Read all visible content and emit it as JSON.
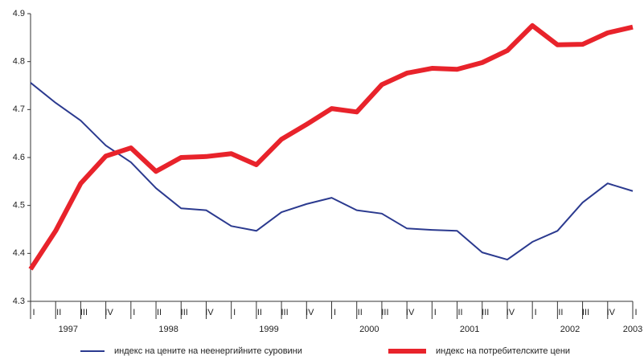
{
  "chart_data": {
    "type": "line",
    "categories": [
      "I",
      "II",
      "III",
      "IV",
      "I",
      "II",
      "III",
      "IV",
      "I",
      "II",
      "III",
      "IV",
      "I",
      "II",
      "III",
      "IV",
      "I",
      "II",
      "III",
      "IV",
      "I",
      "II",
      "III",
      "IV",
      "I"
    ],
    "years": [
      "1997",
      "1998",
      "1999",
      "2000",
      "2001",
      "2002",
      "2003"
    ],
    "series": [
      {
        "name": "индекс на цените на неенергийните суровини",
        "color": "#2b3a8f",
        "width": 2,
        "values": [
          4.756,
          4.714,
          4.677,
          4.625,
          4.59,
          4.536,
          4.494,
          4.49,
          4.457,
          4.447,
          4.486,
          4.503,
          4.516,
          4.49,
          4.483,
          4.452,
          4.449,
          4.447,
          4.402,
          4.387,
          4.424,
          4.447,
          4.506,
          4.546,
          4.53
        ]
      },
      {
        "name": "индекс на потребителските цени",
        "color": "#e8232b",
        "width": 6,
        "values": [
          4.367,
          4.447,
          4.546,
          4.603,
          4.62,
          4.571,
          4.6,
          4.602,
          4.608,
          4.585,
          4.638,
          4.669,
          4.702,
          4.695,
          4.752,
          4.776,
          4.786,
          4.784,
          4.798,
          4.823,
          4.875,
          4.835,
          4.836,
          4.86,
          4.872
        ]
      }
    ],
    "ylim": [
      4.3,
      4.9
    ],
    "yticks": [
      4.3,
      4.4,
      4.5,
      4.6,
      4.7,
      4.8,
      4.9
    ],
    "grid": false,
    "legend": "bottom"
  }
}
